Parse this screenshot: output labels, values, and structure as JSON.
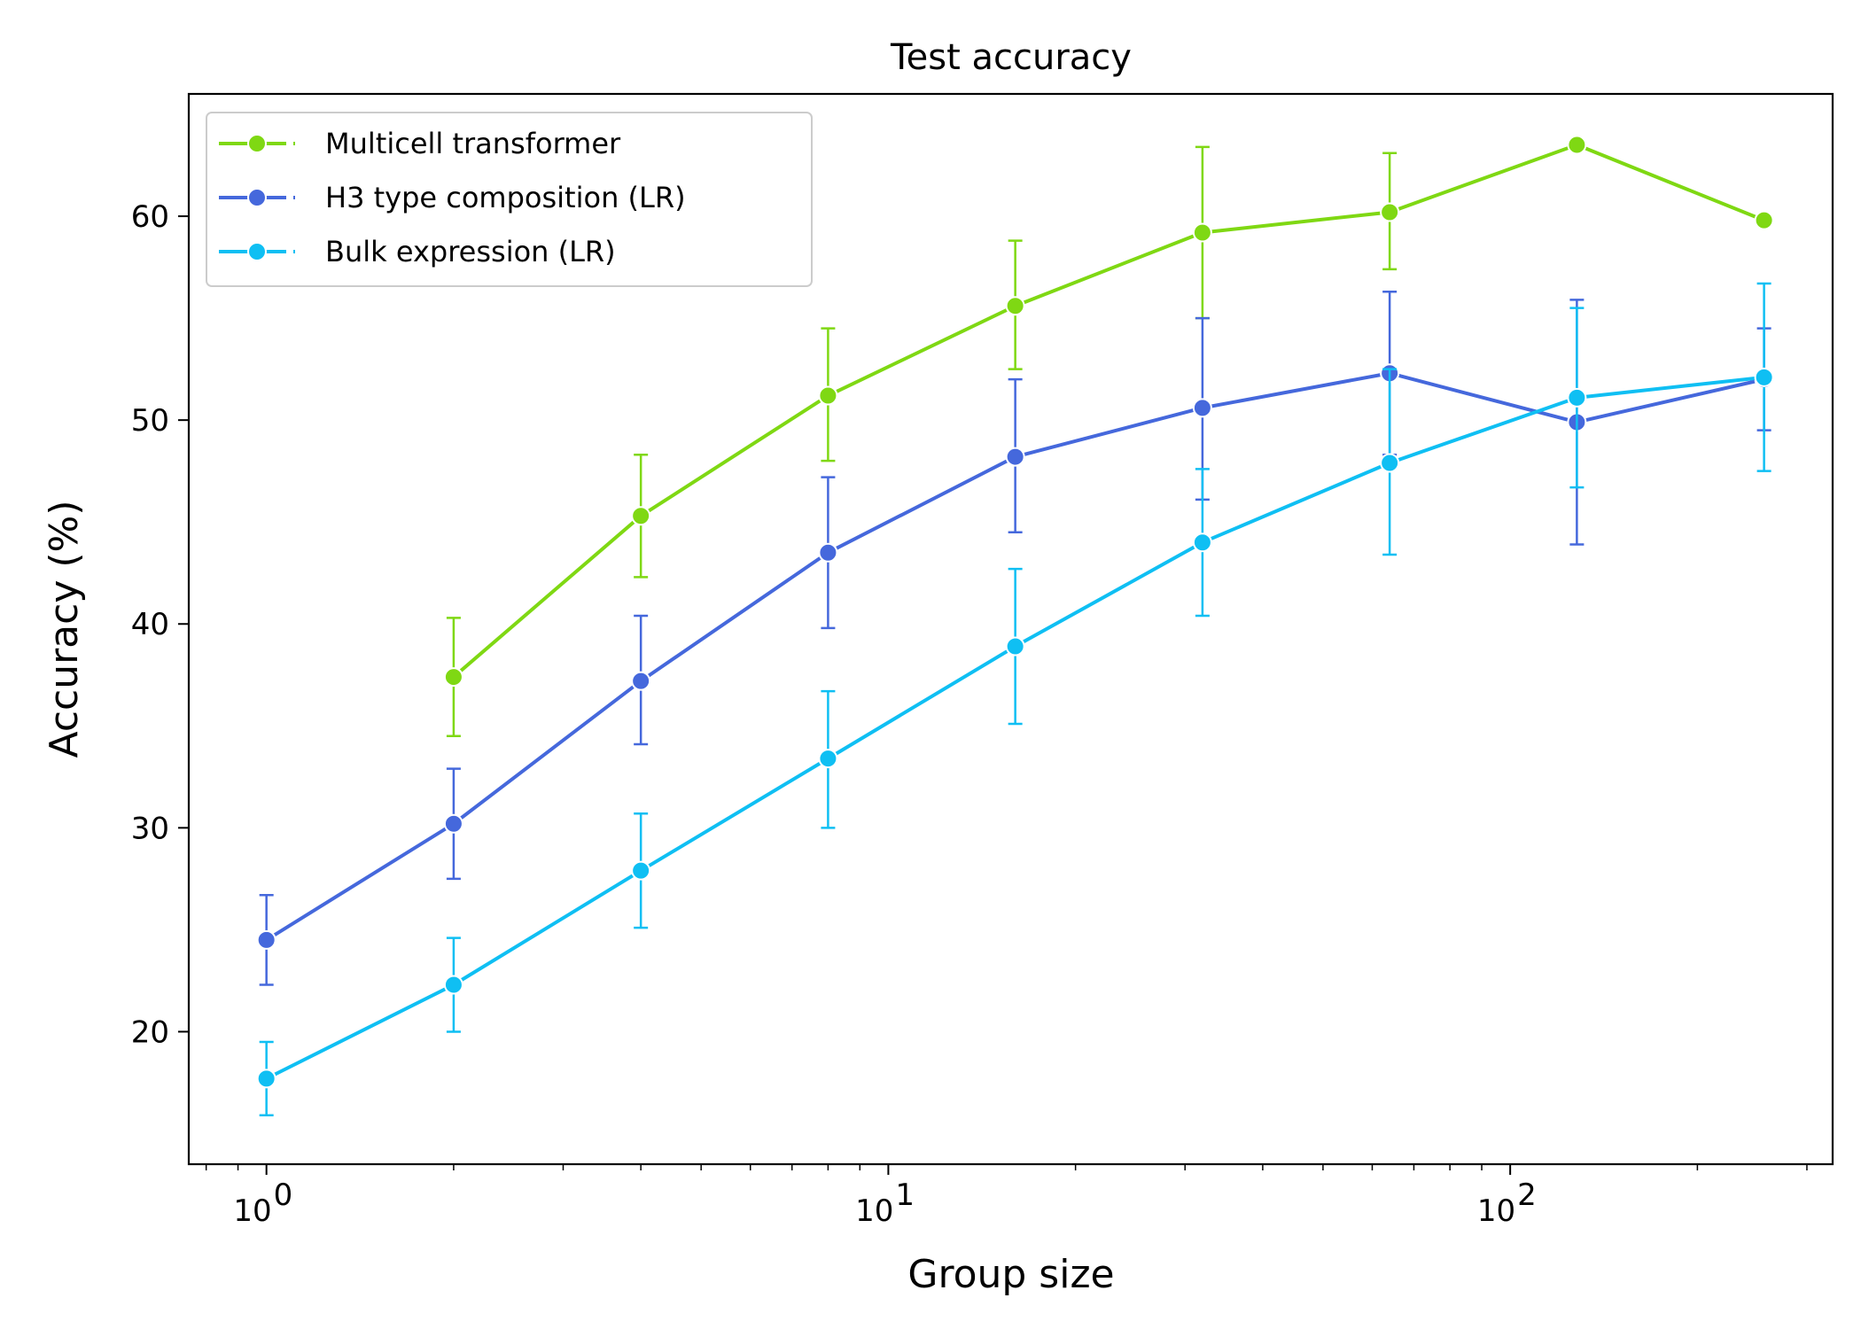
{
  "chart_data": {
    "type": "line",
    "title": "Test accuracy",
    "xlabel": "Group size",
    "ylabel": "Accuracy (%)",
    "xscale": "log",
    "xlim": [
      0.75,
      330
    ],
    "ylim": [
      13.5,
      66
    ],
    "yticks": [
      20,
      30,
      40,
      50,
      60
    ],
    "xticks": [
      {
        "value": 1,
        "base": "10",
        "exp": "0"
      },
      {
        "value": 10,
        "base": "10",
        "exp": "1"
      },
      {
        "value": 100,
        "base": "10",
        "exp": "2"
      }
    ],
    "legend_position": "upper-left",
    "series": [
      {
        "name": "Multicell transformer",
        "color": "#7fd813",
        "x": [
          2,
          4,
          8,
          16,
          32,
          64,
          128,
          256
        ],
        "y": [
          37.4,
          45.3,
          51.2,
          55.6,
          59.2,
          60.2,
          63.5,
          59.8
        ],
        "err_low": [
          34.5,
          42.3,
          48.0,
          52.5,
          55.0,
          57.4,
          null,
          null
        ],
        "err_high": [
          40.3,
          48.3,
          54.5,
          58.8,
          63.4,
          63.1,
          null,
          null
        ]
      },
      {
        "name": "H3 type composition (LR)",
        "color": "#4568dc",
        "x": [
          1,
          2,
          4,
          8,
          16,
          32,
          64,
          128,
          256
        ],
        "y": [
          24.5,
          30.2,
          37.2,
          43.5,
          48.2,
          50.6,
          52.3,
          49.9,
          52.0
        ],
        "err_low": [
          22.3,
          27.5,
          34.1,
          39.8,
          44.5,
          46.1,
          48.3,
          43.9,
          49.5
        ],
        "err_high": [
          26.7,
          32.9,
          40.4,
          47.2,
          52.0,
          55.0,
          56.3,
          55.9,
          54.5
        ]
      },
      {
        "name": "Bulk expression (LR)",
        "color": "#0fbff3",
        "x": [
          1,
          2,
          4,
          8,
          16,
          32,
          64,
          128,
          256
        ],
        "y": [
          17.7,
          22.3,
          27.9,
          33.4,
          38.9,
          44.0,
          47.9,
          51.1,
          52.1
        ],
        "err_low": [
          15.9,
          20.0,
          25.1,
          30.0,
          35.1,
          40.4,
          43.4,
          46.7,
          47.5
        ],
        "err_high": [
          19.5,
          24.6,
          30.7,
          36.7,
          42.7,
          47.6,
          52.5,
          55.5,
          56.7
        ]
      }
    ]
  }
}
